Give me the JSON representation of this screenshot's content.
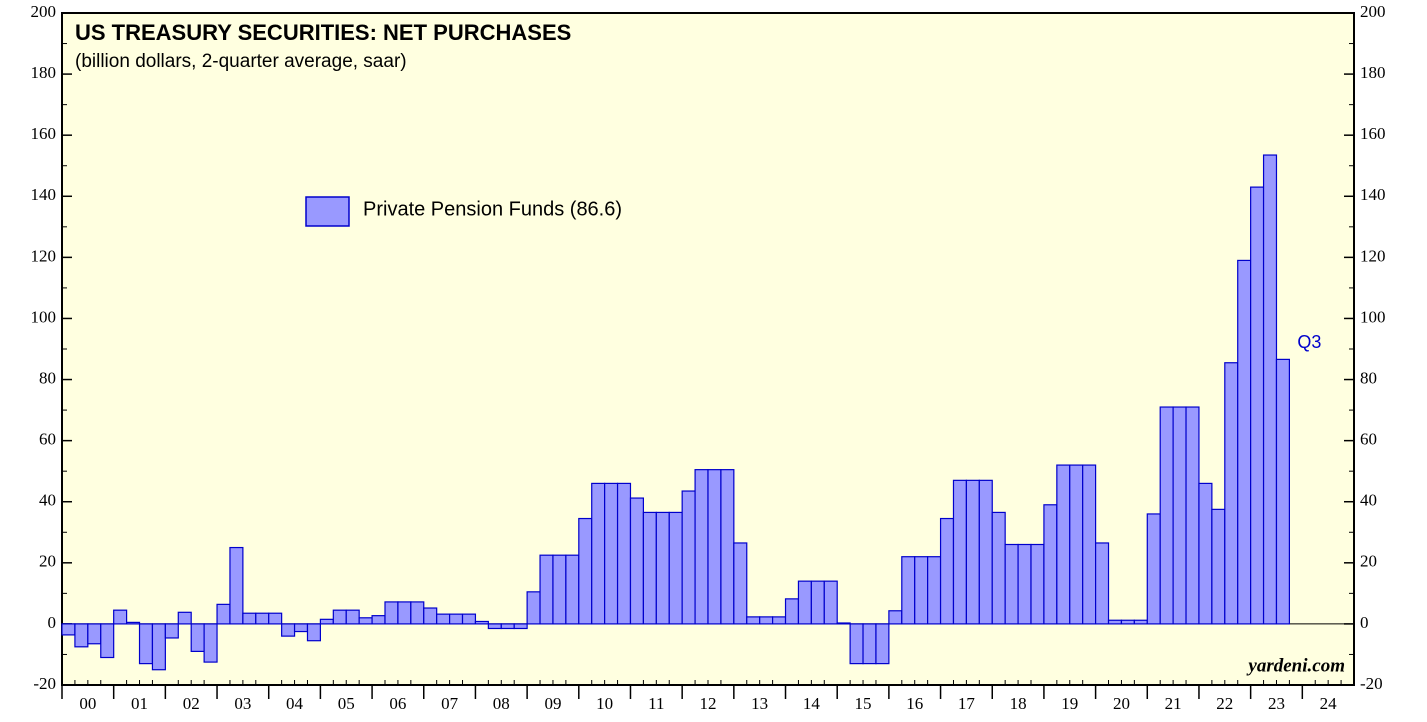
{
  "chart_data": {
    "type": "bar",
    "title": "US TREASURY SECURITIES: NET PURCHASES",
    "subtitle": "(billion dollars, 2-quarter average, saar)",
    "x_labels": [
      "00",
      "01",
      "02",
      "03",
      "04",
      "05",
      "06",
      "07",
      "08",
      "09",
      "10",
      "11",
      "12",
      "13",
      "14",
      "15",
      "16",
      "17",
      "18",
      "19",
      "20",
      "21",
      "22",
      "23",
      "24"
    ],
    "series": [
      {
        "name": "Private Pension Funds (86.6)",
        "color": "#9999ff",
        "values": [
          -3.6,
          -7.5,
          -6.5,
          -11,
          4.5,
          0.5,
          -13,
          -15,
          -4.6,
          3.8,
          -9,
          -12.5,
          6.4,
          25,
          3.5,
          3.5,
          3.5,
          -4,
          -2.5,
          -5.5,
          1.5,
          4.5,
          4.5,
          2,
          2.7,
          7.2,
          7.2,
          7.2,
          5.2,
          3.2,
          3.2,
          3.2,
          0.8,
          -1.5,
          -1.5,
          -1.5,
          10.5,
          22.5,
          22.5,
          22.5,
          34.5,
          46,
          46,
          46,
          41.2,
          36.5,
          36.5,
          36.5,
          43.5,
          50.5,
          50.5,
          50.5,
          26.5,
          2.3,
          2.3,
          2.3,
          8.2,
          14,
          14,
          14,
          0.3,
          -13,
          -13,
          -13,
          4.3,
          22,
          22,
          22,
          34.5,
          47,
          47,
          47,
          36.5,
          26,
          26,
          26,
          39,
          52,
          52,
          52,
          26.5,
          1.2,
          1.2,
          1.2,
          36,
          71,
          71,
          71,
          46,
          37.5,
          85.5,
          119,
          143,
          153.5,
          86.6
        ]
      }
    ],
    "annotation": "Q3",
    "source": "yardeni.com",
    "ylim": [
      -20,
      200
    ],
    "yticks": [
      -20,
      0,
      20,
      40,
      60,
      80,
      100,
      120,
      140,
      160,
      180,
      200
    ]
  }
}
